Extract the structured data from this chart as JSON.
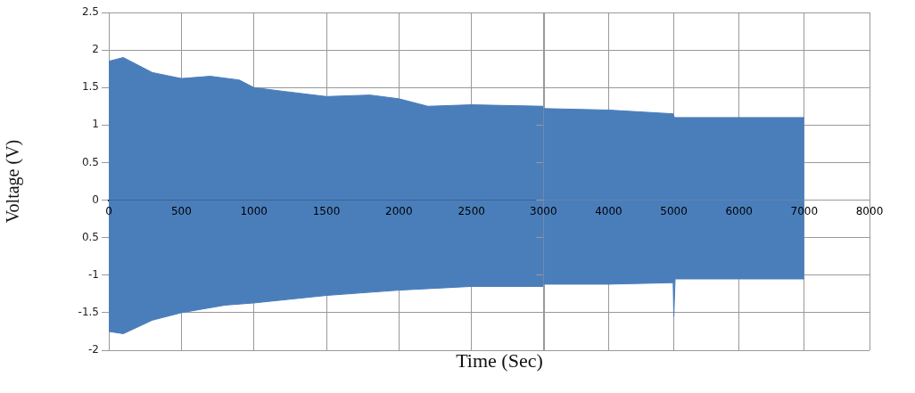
{
  "chart_data": [
    {
      "type": "area",
      "xlabel": "Time (Sec)",
      "ylabel": "Voltage (V)",
      "xlim": [
        0,
        3000
      ],
      "xticks": [
        0,
        500,
        1000,
        1500,
        2000,
        2500,
        {
          "value": 3000,
          "label": null
        }
      ],
      "ylim": [
        -2,
        2.5
      ],
      "yticks": [
        -2,
        -1.5,
        -1,
        {
          "value": -0.5,
          "label": "0.5"
        },
        0,
        0.5,
        1,
        1.5,
        2,
        2.5
      ],
      "grid": true,
      "series": [
        {
          "color": "#4a7ebb",
          "x": [
            0,
            100,
            300,
            500,
            700,
            900,
            1000,
            1200,
            1500,
            1800,
            2000,
            2200,
            2500,
            3000
          ],
          "values": [
            1.85,
            1.9,
            1.7,
            1.62,
            1.65,
            1.6,
            1.5,
            1.45,
            1.38,
            1.4,
            1.35,
            1.25,
            1.27,
            1.25
          ]
        },
        {
          "color": "#4a7ebb",
          "x": [
            0,
            100,
            300,
            500,
            800,
            1000,
            1500,
            2000,
            2500,
            3000
          ],
          "values": [
            -1.75,
            -1.78,
            -1.6,
            -1.5,
            -1.4,
            -1.37,
            -1.27,
            -1.2,
            -1.15,
            -1.15
          ]
        }
      ]
    },
    {
      "type": "area",
      "xlim": [
        3000,
        8000
      ],
      "xticks": [
        3000,
        4000,
        5000,
        6000,
        7000,
        8000
      ],
      "ylim": [
        -2,
        2.5
      ],
      "yticks": [
        -2,
        -1.5,
        -1,
        -0.5,
        0,
        0.5,
        1,
        1.5,
        2,
        2.5
      ],
      "grid": true,
      "tick_labels": "x",
      "series": [
        {
          "color": "#4a7ebb",
          "x": [
            3000,
            4000,
            4990,
            5010,
            6000,
            7000
          ],
          "values": [
            1.22,
            1.2,
            1.15,
            1.1,
            1.1,
            1.1
          ]
        },
        {
          "color": "#4a7ebb",
          "x": [
            3000,
            4000,
            4990,
            5000,
            5020,
            6000,
            7000
          ],
          "values": [
            -1.12,
            -1.12,
            -1.1,
            -1.55,
            -1.05,
            -1.05,
            -1.05
          ]
        }
      ]
    }
  ]
}
